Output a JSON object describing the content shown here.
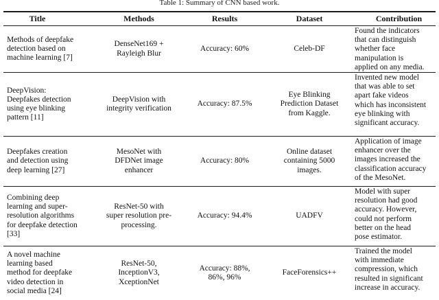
{
  "caption": "Table 1: Summary of CNN based work.",
  "colors": {
    "background": "#ffffff",
    "text": "#111111",
    "rule": "#1b1b1b"
  },
  "table": {
    "headers": [
      "Title",
      "Methods",
      "Results",
      "Dataset",
      "Contribution"
    ],
    "rows": [
      {
        "title": "Methods of deepfake\ndetection based on\nmachine learning [7]",
        "methods": "DenseNet169 +\nRayleigh Blur",
        "results": "Accuracy: 60%",
        "dataset": "Celeb-DF",
        "contribution": "Found the indicators\nthat can distinguish\nwhether face\nmanipulation is\napplied on any media."
      },
      {
        "title": "DeepVision:\nDeepfakes detection\nusing eye blinking\npattern [11]",
        "methods": "DeepVision with\nintegrity verification",
        "results": "Accuracy: 87.5%",
        "dataset": "Eye Blinking\nPrediction Dataset\nfrom Kaggle.",
        "contribution": "Invented new model\nthat was able to set\napart fake videos\nwhich has inconsistent\neye blinking with\nsignificant accuracy."
      },
      {
        "title": "Deepfakes creation\nand detection using\ndeep learning [27]",
        "methods": "MesoNet with\nDFDNet image\nenhancer",
        "results": "Accuracy: 80%",
        "dataset": "Online dataset\ncontaining 5000\nimages.",
        "contribution": "Application of image\nenhancer over the\nimages increased the\nclassification accuracy\nof the MesoNet."
      },
      {
        "title": "Combining deep\nlearning and super-\nresolution algorithms\nfor deepfake detection\n[33]",
        "methods": "ResNet-50 with\nsuper resolution pre-\nprocessing.",
        "results": "Accuracy: 94.4%",
        "dataset": "UADFV",
        "contribution": "Model with super\nresolution had good\naccuracy. However,\ncould not perform\nbetter on the head\npose estimator."
      },
      {
        "title": "A novel machine\nlearning based\nmethod for deepfake\nvideo detection in\nsocial media [24]",
        "methods": "ResNet-50,\nInceptionV3,\nXceptionNet",
        "results": "Accuracy: 88%,\n86%, 96%",
        "dataset": "FaceForensics++",
        "contribution": "Trained the model\nwith immediate\ncompression, which\nresulted in significant\nincrease in accuracy."
      }
    ]
  }
}
